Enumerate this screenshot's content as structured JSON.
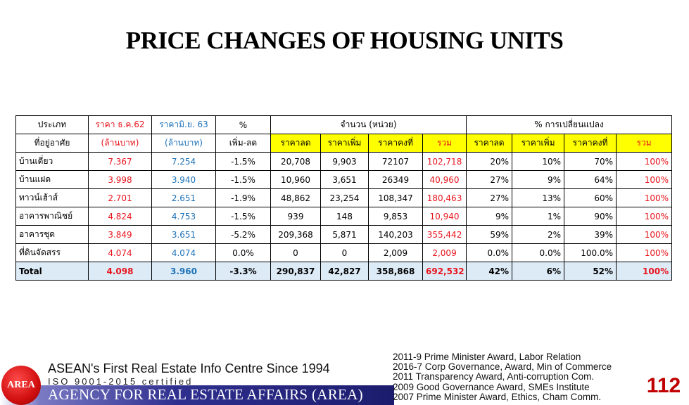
{
  "title": "PRICE CHANGES OF HOUSING UNITS",
  "table": {
    "header1": {
      "type": "ประเภท",
      "price_dec62": "ราคา ธ.ค.62",
      "price_jun63": "ราคามิ.ย. 63",
      "pct": "%",
      "units": "จำนวน (หน่วย)",
      "pct_change": "% การเปลี่ยนแปลง"
    },
    "header2": {
      "type": "ที่อยู่อาศัย",
      "price_dec62": "(ล้านบาท)",
      "price_jun63": "(ล้านบาท)",
      "pct": "เพิ่ม-ลด",
      "units": [
        "ราคาลด",
        "ราคาเพิ่ม",
        "ราคาคงที่",
        "รวม"
      ],
      "pct_change": [
        "ราคาลด",
        "ราคาเพิ่ม",
        "ราคาคงที่",
        "รวม"
      ]
    },
    "rows": [
      [
        "บ้านเดี่ยว",
        "7.367",
        "7.254",
        "-1.5%",
        "20,708",
        "9,903",
        "72107",
        "102,718",
        "20%",
        "10%",
        "70%",
        "100%"
      ],
      [
        "บ้านแฝด",
        "3.998",
        "3.940",
        "-1.5%",
        "10,960",
        "3,651",
        "26349",
        "40,960",
        "27%",
        "9%",
        "64%",
        "100%"
      ],
      [
        "ทาวน์เฮ้าส์",
        "2.701",
        "2.651",
        "-1.9%",
        "48,862",
        "23,254",
        "108,347",
        "180,463",
        "27%",
        "13%",
        "60%",
        "100%"
      ],
      [
        "อาคารพาณิชย์",
        "4.824",
        "4.753",
        "-1.5%",
        "939",
        "148",
        "9,853",
        "10,940",
        "9%",
        "1%",
        "90%",
        "100%"
      ],
      [
        "อาคารชุด",
        "3.849",
        "3.651",
        "-5.2%",
        "209,368",
        "5,871",
        "140,203",
        "355,442",
        "59%",
        "2%",
        "39%",
        "100%"
      ],
      [
        "ที่ดินจัดสรร",
        "4.074",
        "4.074",
        "0.0%",
        "0",
        "0",
        "2,009",
        "2,009",
        "0.0%",
        "0.0%",
        "100.0%",
        "100%"
      ]
    ],
    "total": [
      "Total",
      "4.098",
      "3.960",
      "-3.3%",
      "290,837",
      "42,827",
      "358,868",
      "692,532",
      "42%",
      "6%",
      "52%",
      "100%"
    ]
  },
  "footer": {
    "logo_text": "AREA",
    "tagline": "ASEAN's First Real Estate Info Centre Since 1994",
    "iso": "ISO 9001-2015 certified",
    "agency": "AGENCY FOR REAL ESTATE AFFAIRS (AREA)",
    "awards": [
      "2011-9 Prime Minister Award, Labor Relation",
      "2016-7 Corp Governance, Award, Min of Commerce",
      "2011 Transparency Award, Anti-corruption Com.",
      "2009 Good Governance Award, SMEs Institute",
      "2007 Prime Minister Award, Ethics, Cham Comm."
    ],
    "page_number": "112"
  }
}
